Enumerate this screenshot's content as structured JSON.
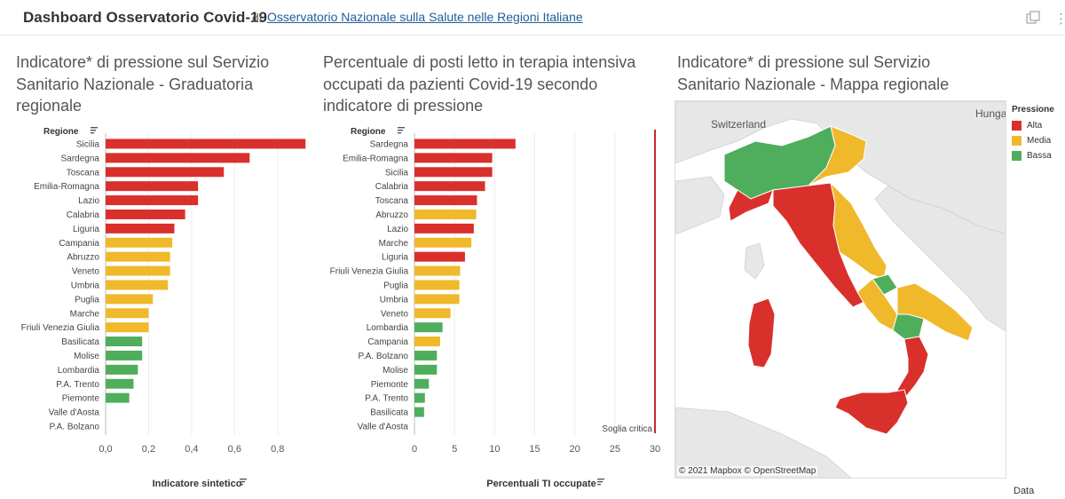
{
  "header": {
    "title": "Dashboard Osservatorio Covid-19",
    "by": "di",
    "author_link": "Osservatorio Nazionale sulla Salute nelle Regioni Italiane"
  },
  "colors": {
    "Alta": "#d9302c",
    "Media": "#f0b92b",
    "Bassa": "#4fae5c"
  },
  "panel1": {
    "title_lines": [
      "Indicatore* di pressione sul Servizio",
      "Sanitario Nazionale - Graduatoria",
      "regionale"
    ]
  },
  "panel2": {
    "title_lines": [
      "Percentuale di posti letto in terapia intensiva",
      "occupati da pazienti Covid-19 secondo",
      "indicatore di pressione"
    ]
  },
  "panel3": {
    "title_lines": [
      "Indicatore* di pressione sul Servizio",
      "Sanitario Nazionale - Mappa regionale"
    ],
    "attribution": "© 2021 Mapbox  © OpenStreetMap",
    "map_labels": [
      "Switzerland",
      "Hunga"
    ]
  },
  "legend": {
    "title": "Pressione",
    "items": [
      {
        "label": "Alta",
        "color": "#d9302c"
      },
      {
        "label": "Media",
        "color": "#f0b92b"
      },
      {
        "label": "Bassa",
        "color": "#4fae5c"
      }
    ]
  },
  "footer": {
    "data_link": "Data"
  },
  "chart_data": [
    {
      "type": "bar",
      "orientation": "horizontal",
      "row_header": "Regione",
      "xlabel": "Indicatore sintetico",
      "xlim": [
        0,
        0.9
      ],
      "ticks": [
        "0,0",
        "0,2",
        "0,4",
        "0,6",
        "0,8"
      ],
      "tick_values": [
        0,
        0.2,
        0.4,
        0.6,
        0.8
      ],
      "categories": [
        "Sicilia",
        "Sardegna",
        "Toscana",
        "Emilia-Romagna",
        "Lazio",
        "Calabria",
        "Liguria",
        "Campania",
        "Abruzzo",
        "Veneto",
        "Umbria",
        "Puglia",
        "Marche",
        "Friuli Venezia Giulia",
        "Basilicata",
        "Molise",
        "Lombardia",
        "P.A. Trento",
        "Piemonte",
        "Valle d'Aosta",
        "P.A. Bolzano"
      ],
      "values": [
        0.93,
        0.67,
        0.55,
        0.43,
        0.43,
        0.37,
        0.32,
        0.31,
        0.3,
        0.3,
        0.29,
        0.22,
        0.2,
        0.2,
        0.17,
        0.17,
        0.15,
        0.13,
        0.11,
        null,
        null
      ],
      "levels": [
        "Alta",
        "Alta",
        "Alta",
        "Alta",
        "Alta",
        "Alta",
        "Alta",
        "Media",
        "Media",
        "Media",
        "Media",
        "Media",
        "Media",
        "Media",
        "Bassa",
        "Bassa",
        "Bassa",
        "Bassa",
        "Bassa",
        null,
        null
      ]
    },
    {
      "type": "bar",
      "orientation": "horizontal",
      "row_header": "Regione",
      "xlabel": "Percentuali TI occupate",
      "xlim": [
        0,
        30
      ],
      "ticks": [
        "0",
        "5",
        "10",
        "15",
        "20",
        "25",
        "30"
      ],
      "tick_values": [
        0,
        5,
        10,
        15,
        20,
        25,
        30
      ],
      "reference_line": {
        "value": 30,
        "label": "Soglia critica"
      },
      "categories": [
        "Sardegna",
        "Emilia-Romagna",
        "Sicilia",
        "Calabria",
        "Toscana",
        "Abruzzo",
        "Lazio",
        "Marche",
        "Liguria",
        "Friuli Venezia Giulia",
        "Puglia",
        "Umbria",
        "Veneto",
        "Lombardia",
        "Campania",
        "P.A. Bolzano",
        "Molise",
        "Piemonte",
        "P.A. Trento",
        "Basilicata",
        "Valle d'Aosta"
      ],
      "values": [
        12.6,
        9.7,
        9.7,
        8.8,
        7.8,
        7.7,
        7.4,
        7.1,
        6.3,
        5.7,
        5.6,
        5.6,
        4.5,
        3.5,
        3.2,
        2.8,
        2.8,
        1.8,
        1.3,
        1.2,
        null
      ],
      "levels": [
        "Alta",
        "Alta",
        "Alta",
        "Alta",
        "Alta",
        "Media",
        "Alta",
        "Media",
        "Alta",
        "Media",
        "Media",
        "Media",
        "Media",
        "Bassa",
        "Media",
        "Bassa",
        "Bassa",
        "Bassa",
        "Bassa",
        "Bassa",
        null
      ]
    }
  ]
}
